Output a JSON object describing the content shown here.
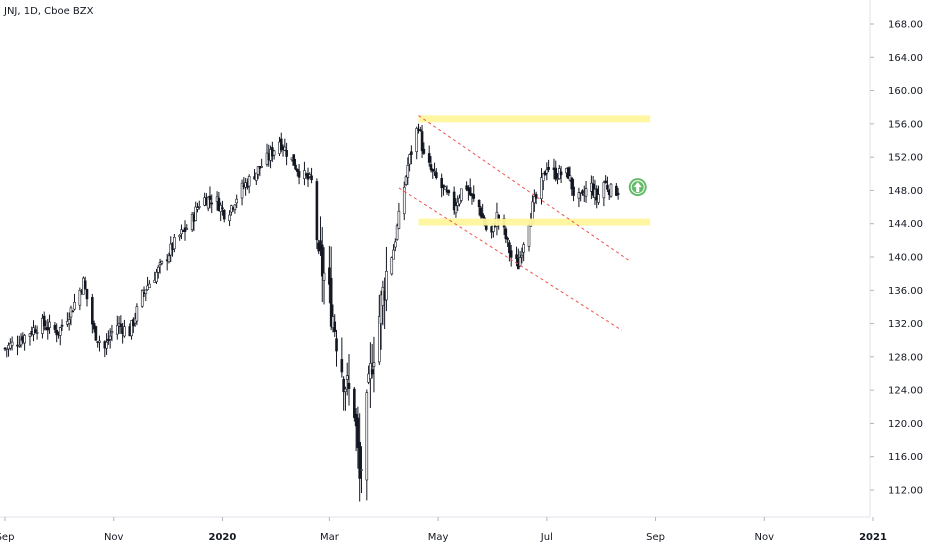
{
  "header": {
    "symbol_text": "JNJ, 1D, Cboe BZX"
  },
  "colors": {
    "background": "#ffffff",
    "candle": "#131722",
    "zone_fill": "#fff59d",
    "channel_line": "#ef5350",
    "arrow_circle": "#66bb6a",
    "axis_text": "#131722",
    "axis_line": "#e0e3eb"
  },
  "annotations": {
    "arrow_icon": "up-arrow-circle-icon"
  },
  "chart_data": {
    "type": "candlestick",
    "title": "JNJ, 1D, Cboe BZX",
    "ylim": [
      108,
      172
    ],
    "y_ticks": [
      "112.00",
      "116.00",
      "120.00",
      "124.00",
      "128.00",
      "132.00",
      "136.00",
      "140.00",
      "144.00",
      "148.00",
      "152.00",
      "156.00",
      "160.00",
      "164.00",
      "168.00"
    ],
    "x_ticks": [
      "Sep",
      "Nov",
      "2020",
      "Mar",
      "May",
      "Jul",
      "Sep",
      "Nov",
      "2021"
    ],
    "x_tick_days": [
      0,
      61,
      122,
      182,
      243,
      304,
      365,
      426,
      487
    ],
    "bars_start_day": 0,
    "bars_end_day": 344,
    "close_anchors": [
      [
        0,
        129
      ],
      [
        8,
        130
      ],
      [
        20,
        132
      ],
      [
        30,
        131
      ],
      [
        38,
        134
      ],
      [
        44,
        137
      ],
      [
        50,
        131
      ],
      [
        56,
        129
      ],
      [
        62,
        132
      ],
      [
        70,
        131
      ],
      [
        78,
        136
      ],
      [
        88,
        139
      ],
      [
        96,
        142
      ],
      [
        104,
        144
      ],
      [
        110,
        147
      ],
      [
        118,
        147
      ],
      [
        124,
        145
      ],
      [
        132,
        148
      ],
      [
        140,
        150
      ],
      [
        148,
        152
      ],
      [
        154,
        154
      ],
      [
        160,
        152
      ],
      [
        166,
        150
      ],
      [
        172,
        149
      ],
      [
        176,
        140
      ],
      [
        180,
        137
      ],
      [
        184,
        133
      ],
      [
        188,
        128
      ],
      [
        192,
        124
      ],
      [
        196,
        122
      ],
      [
        199,
        113
      ],
      [
        202,
        119
      ],
      [
        206,
        128
      ],
      [
        210,
        133
      ],
      [
        214,
        138
      ],
      [
        218,
        141
      ],
      [
        222,
        146
      ],
      [
        226,
        151
      ],
      [
        232,
        156
      ],
      [
        235,
        152
      ],
      [
        240,
        150
      ],
      [
        246,
        148
      ],
      [
        252,
        146
      ],
      [
        258,
        149
      ],
      [
        262,
        147
      ],
      [
        266,
        146
      ],
      [
        272,
        142
      ],
      [
        276,
        145
      ],
      [
        280,
        143
      ],
      [
        284,
        140
      ],
      [
        288,
        139
      ],
      [
        292,
        143
      ],
      [
        296,
        146
      ],
      [
        300,
        148
      ],
      [
        304,
        151
      ],
      [
        308,
        150
      ],
      [
        312,
        150
      ],
      [
        316,
        150
      ],
      [
        320,
        147
      ],
      [
        324,
        147
      ],
      [
        328,
        149
      ],
      [
        332,
        147
      ],
      [
        336,
        149
      ],
      [
        340,
        148
      ],
      [
        344,
        148
      ]
    ],
    "support_zone": {
      "x_start_day": 232,
      "x_end_day": 362,
      "price": 144.2
    },
    "resistance_zone": {
      "x_start_day": 232,
      "x_end_day": 362,
      "price": 156.6
    },
    "channel_upper": {
      "x1_day": 232,
      "y1": 157.0,
      "x2_day": 350,
      "y2": 139.6
    },
    "channel_lower": {
      "x1_day": 221,
      "y1": 148.3,
      "x2_day": 346,
      "y2": 131.2
    },
    "arrow_marker": {
      "day": 355,
      "price": 148.4,
      "direction": "up"
    },
    "grid": false,
    "legend": "none"
  }
}
